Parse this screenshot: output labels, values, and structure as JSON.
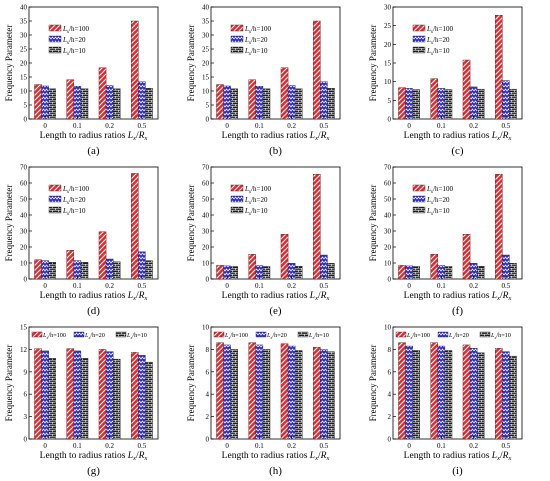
{
  "figure": {
    "xlabel_prefix": "Length to radius ratios ",
    "xlabel_var": "L",
    "xlabel_sub": "x",
    "xlabel_slash": "/",
    "xlabel_var2": "R",
    "xlabel_sub2": "x",
    "ylabel": "Frequency Parameter",
    "legend_var": "L",
    "legend_sub": "x",
    "legend_mid": "/h="
  },
  "colors": {
    "h100": "#e8262a",
    "h20": "#2a2ad6",
    "h10": "#1c1c1c"
  },
  "pattern_names": {
    "h100": "diagonal-hatch",
    "h20": "zigzag",
    "h10": "brick"
  },
  "chart_data": [
    {
      "type": "bar",
      "label": "(a)",
      "categories": [
        "0",
        "0.1",
        "0.2",
        "0.5"
      ],
      "yticks": [
        "0",
        "5",
        "10",
        "15",
        "20",
        "25",
        "30",
        "35",
        "40"
      ],
      "ylim": [
        0,
        40
      ],
      "legend_layout": "vertical",
      "series": [
        {
          "name": "100",
          "values": [
            12.3,
            14.0,
            18.3,
            35.0
          ]
        },
        {
          "name": "20",
          "values": [
            11.8,
            11.7,
            12.0,
            13.3
          ]
        },
        {
          "name": "10",
          "values": [
            10.8,
            10.8,
            10.8,
            11.0
          ]
        }
      ]
    },
    {
      "type": "bar",
      "label": "(b)",
      "categories": [
        "0",
        "0.1",
        "0.2",
        "0.5"
      ],
      "yticks": [
        "0",
        "5",
        "10",
        "15",
        "20",
        "25",
        "30",
        "35",
        "40"
      ],
      "ylim": [
        0,
        40
      ],
      "legend_layout": "vertical",
      "series": [
        {
          "name": "100",
          "values": [
            12.3,
            14.0,
            18.3,
            35.0
          ]
        },
        {
          "name": "20",
          "values": [
            11.8,
            11.7,
            12.0,
            13.3
          ]
        },
        {
          "name": "10",
          "values": [
            10.8,
            10.8,
            10.8,
            11.0
          ]
        }
      ]
    },
    {
      "type": "bar",
      "label": "(c)",
      "categories": [
        "0",
        "0.1",
        "0.2",
        "0.5"
      ],
      "yticks": [
        "0",
        "5",
        "10",
        "15",
        "20",
        "25",
        "30"
      ],
      "ylim": [
        0,
        30
      ],
      "legend_layout": "vertical",
      "series": [
        {
          "name": "100",
          "values": [
            8.4,
            10.8,
            15.8,
            27.8
          ]
        },
        {
          "name": "20",
          "values": [
            8.2,
            8.2,
            8.6,
            10.3
          ]
        },
        {
          "name": "10",
          "values": [
            7.9,
            7.9,
            8.0,
            8.0
          ]
        }
      ]
    },
    {
      "type": "bar",
      "label": "(d)",
      "categories": [
        "0",
        "0.1",
        "0.2",
        "0.5"
      ],
      "yticks": [
        "0",
        "10",
        "20",
        "30",
        "40",
        "50",
        "60",
        "70"
      ],
      "ylim": [
        0,
        70
      ],
      "legend_layout": "vertical",
      "series": [
        {
          "name": "100",
          "values": [
            12.0,
            18.0,
            29.5,
            66.0
          ]
        },
        {
          "name": "20",
          "values": [
            11.5,
            11.5,
            12.5,
            17.0
          ]
        },
        {
          "name": "10",
          "values": [
            10.5,
            10.5,
            10.8,
            11.5
          ]
        }
      ]
    },
    {
      "type": "bar",
      "label": "(e)",
      "categories": [
        "0",
        "0.1",
        "0.2",
        "0.5"
      ],
      "yticks": [
        "0",
        "10",
        "20",
        "30",
        "40",
        "50",
        "60",
        "70"
      ],
      "ylim": [
        0,
        70
      ],
      "legend_layout": "vertical",
      "series": [
        {
          "name": "100",
          "values": [
            8.5,
            15.5,
            28.0,
            65.5
          ]
        },
        {
          "name": "20",
          "values": [
            8.2,
            8.5,
            9.8,
            15.0
          ]
        },
        {
          "name": "10",
          "values": [
            7.8,
            7.8,
            8.0,
            9.8
          ]
        }
      ]
    },
    {
      "type": "bar",
      "label": "(f)",
      "categories": [
        "0",
        "0.1",
        "0.2",
        "0.5"
      ],
      "yticks": [
        "0",
        "10",
        "20",
        "30",
        "40",
        "50",
        "60",
        "70"
      ],
      "ylim": [
        0,
        70
      ],
      "legend_layout": "vertical",
      "series": [
        {
          "name": "100",
          "values": [
            8.5,
            15.5,
            28.0,
            65.5
          ]
        },
        {
          "name": "20",
          "values": [
            8.2,
            8.5,
            9.8,
            15.0
          ]
        },
        {
          "name": "10",
          "values": [
            7.8,
            7.8,
            8.0,
            9.8
          ]
        }
      ]
    },
    {
      "type": "bar",
      "label": "(g)",
      "categories": [
        "0",
        "0.1",
        "0.2",
        "0.5"
      ],
      "yticks": [
        "0",
        "3",
        "6",
        "9",
        "12",
        "15"
      ],
      "ylim": [
        0,
        15
      ],
      "legend_layout": "horizontal",
      "series": [
        {
          "name": "100",
          "values": [
            12.1,
            12.1,
            12.0,
            11.6
          ]
        },
        {
          "name": "20",
          "values": [
            11.8,
            11.8,
            11.7,
            11.2
          ]
        },
        {
          "name": "10",
          "values": [
            10.8,
            10.8,
            10.7,
            10.3
          ]
        }
      ]
    },
    {
      "type": "bar",
      "label": "(h)",
      "categories": [
        "0",
        "0.1",
        "0.2",
        "0.5"
      ],
      "yticks": [
        "0",
        "2",
        "4",
        "6",
        "8",
        "10"
      ],
      "ylim": [
        0,
        10
      ],
      "legend_layout": "horizontal",
      "series": [
        {
          "name": "100",
          "values": [
            8.6,
            8.6,
            8.5,
            8.2
          ]
        },
        {
          "name": "20",
          "values": [
            8.4,
            8.4,
            8.3,
            8.0
          ]
        },
        {
          "name": "10",
          "values": [
            8.0,
            8.0,
            7.9,
            7.8
          ]
        }
      ]
    },
    {
      "type": "bar",
      "label": "(i)",
      "categories": [
        "0",
        "0.1",
        "0.2",
        "0.5"
      ],
      "yticks": [
        "0",
        "2",
        "4",
        "6",
        "8",
        "10"
      ],
      "ylim": [
        0,
        10
      ],
      "legend_layout": "horizontal",
      "series": [
        {
          "name": "100",
          "values": [
            8.6,
            8.6,
            8.4,
            8.1
          ]
        },
        {
          "name": "20",
          "values": [
            8.3,
            8.3,
            8.1,
            7.8
          ]
        },
        {
          "name": "10",
          "values": [
            7.9,
            7.9,
            7.7,
            7.4
          ]
        }
      ]
    }
  ]
}
